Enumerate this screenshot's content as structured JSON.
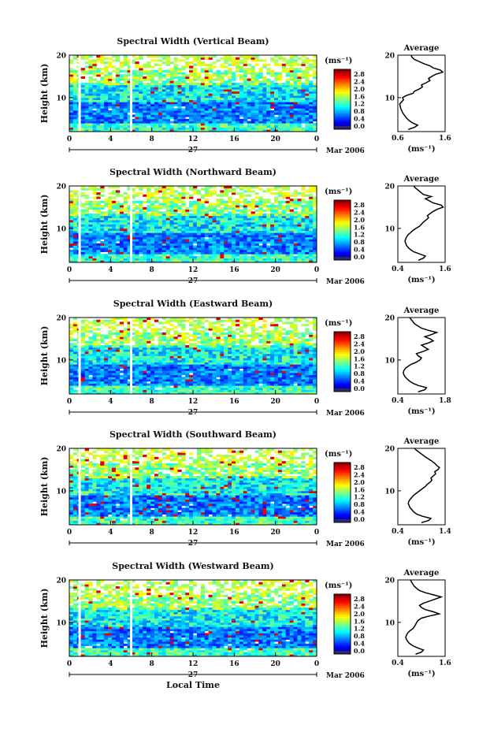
{
  "chart_data": [
    {
      "type": "heatmap",
      "title": "Spectral Width (Vertical Beam)",
      "ylabel": "Height (km)",
      "ylim": [
        2,
        20
      ],
      "y_ticks": [
        "10",
        "20"
      ],
      "xlim": [
        0,
        24
      ],
      "x_ticks": [
        "0",
        "4",
        "8",
        "12",
        "16",
        "20",
        "0"
      ],
      "date_label": "27",
      "month_label": "Mar 2006",
      "colorbar_unit": "(ms⁻¹)",
      "colorbar_ticks": [
        "2.8",
        "2.4",
        "2.0",
        "1.6",
        "1.2",
        "0.8",
        "0.4",
        "0.0"
      ],
      "colorbar_range": [
        0,
        3.0
      ],
      "data_gaps_hours": [
        1.0,
        6.0
      ],
      "average": {
        "title": "Average",
        "xlabel": "(ms⁻¹)",
        "x_ticks": [
          "0.6",
          "1.6"
        ],
        "xlim": [
          0.6,
          1.6
        ],
        "y_ticks": [
          "10",
          "20"
        ],
        "ylim": [
          2,
          20
        ],
        "heights_km": [
          2.5,
          3.0,
          3.5,
          4.0,
          4.5,
          5.0,
          5.5,
          6.0,
          6.5,
          7.0,
          7.5,
          8.0,
          8.5,
          9.0,
          9.5,
          10.0,
          10.5,
          11.0,
          11.5,
          12.0,
          12.5,
          13.0,
          13.5,
          14.0,
          14.5,
          15.0,
          15.5,
          16.0,
          16.5,
          17.0,
          17.5,
          18.0,
          18.5,
          19.0,
          19.5,
          20.0
        ],
        "values": [
          0.82,
          0.95,
          1.02,
          0.92,
          0.85,
          0.8,
          0.76,
          0.73,
          0.7,
          0.68,
          0.66,
          0.65,
          0.64,
          0.68,
          0.72,
          0.7,
          0.78,
          0.92,
          0.95,
          1.05,
          1.12,
          1.1,
          1.2,
          1.28,
          1.25,
          1.32,
          1.4,
          1.55,
          1.5,
          1.35,
          1.28,
          1.15,
          1.05,
          0.95,
          0.9,
          0.88
        ]
      }
    },
    {
      "type": "heatmap",
      "title": "Spectral Width (Northward Beam)",
      "ylabel": "Height (km)",
      "ylim": [
        2,
        20
      ],
      "y_ticks": [
        "10",
        "20"
      ],
      "xlim": [
        0,
        24
      ],
      "x_ticks": [
        "0",
        "4",
        "8",
        "12",
        "16",
        "20",
        "0"
      ],
      "date_label": "27",
      "month_label": "Mar 2006",
      "colorbar_unit": "(ms⁻¹)",
      "colorbar_ticks": [
        "2.8",
        "2.4",
        "2.0",
        "1.6",
        "1.2",
        "0.8",
        "0.4",
        "0.0"
      ],
      "colorbar_range": [
        0,
        3.0
      ],
      "data_gaps_hours": [
        1.0,
        6.0
      ],
      "average": {
        "title": "Average",
        "xlabel": "(ms⁻¹)",
        "x_ticks": [
          "0.4",
          "1.6"
        ],
        "xlim": [
          0.4,
          1.6
        ],
        "y_ticks": [
          "10",
          "20"
        ],
        "ylim": [
          2,
          20
        ],
        "heights_km": [
          2.5,
          3.0,
          3.5,
          4.0,
          4.5,
          5.0,
          5.5,
          6.0,
          6.5,
          7.0,
          7.5,
          8.0,
          8.5,
          9.0,
          9.5,
          10.0,
          10.5,
          11.0,
          11.5,
          12.0,
          12.5,
          13.0,
          13.5,
          14.0,
          14.5,
          15.0,
          15.5,
          16.0,
          16.5,
          17.0,
          17.5,
          18.0,
          18.5,
          19.0,
          19.5,
          20.0
        ],
        "values": [
          0.92,
          1.05,
          1.1,
          0.95,
          0.8,
          0.72,
          0.66,
          0.62,
          0.6,
          0.58,
          0.6,
          0.62,
          0.66,
          0.72,
          0.78,
          0.86,
          0.95,
          1.0,
          1.05,
          1.12,
          1.18,
          1.15,
          1.22,
          1.3,
          1.4,
          1.55,
          1.5,
          1.3,
          1.2,
          1.1,
          1.25,
          1.05,
          0.98,
          0.92,
          0.85,
          0.8
        ]
      }
    },
    {
      "type": "heatmap",
      "title": "Spectral Width (Eastward Beam)",
      "ylabel": "Height (km)",
      "ylim": [
        2,
        20
      ],
      "y_ticks": [
        "10",
        "20"
      ],
      "xlim": [
        0,
        24
      ],
      "x_ticks": [
        "0",
        "4",
        "8",
        "12",
        "16",
        "20",
        "0"
      ],
      "date_label": "27",
      "month_label": "Mar 2006",
      "colorbar_unit": "(ms⁻¹)",
      "colorbar_ticks": [
        "2.8",
        "2.4",
        "2.0",
        "1.6",
        "1.2",
        "0.8",
        "0.4",
        "0.0"
      ],
      "colorbar_range": [
        0,
        3.0
      ],
      "data_gaps_hours": [
        1.0,
        6.0
      ],
      "average": {
        "title": "Average",
        "xlabel": "(ms⁻¹)",
        "x_ticks": [
          "0.4",
          "1.8"
        ],
        "xlim": [
          0.4,
          1.8
        ],
        "y_ticks": [
          "10",
          "20"
        ],
        "ylim": [
          2,
          20
        ],
        "heights_km": [
          2.5,
          3.0,
          3.5,
          4.0,
          4.5,
          5.0,
          5.5,
          6.0,
          6.5,
          7.0,
          7.5,
          8.0,
          8.5,
          9.0,
          9.5,
          10.0,
          10.5,
          11.0,
          11.5,
          12.0,
          12.5,
          13.0,
          13.5,
          14.0,
          14.5,
          15.0,
          15.5,
          16.0,
          16.5,
          17.0,
          17.5,
          18.0,
          18.5,
          19.0,
          19.5,
          20.0
        ],
        "values": [
          1.0,
          1.2,
          1.25,
          1.0,
          0.85,
          0.75,
          0.68,
          0.62,
          0.58,
          0.56,
          0.58,
          0.62,
          0.7,
          0.8,
          0.95,
          1.05,
          1.1,
          1.0,
          0.95,
          1.15,
          1.3,
          1.2,
          1.1,
          1.3,
          1.45,
          1.35,
          1.2,
          1.4,
          1.55,
          1.3,
          1.1,
          1.0,
          0.9,
          0.85,
          0.8,
          0.75
        ]
      }
    },
    {
      "type": "heatmap",
      "title": "Spectral Width (Southward Beam)",
      "ylabel": "Height (km)",
      "ylim": [
        2,
        20
      ],
      "y_ticks": [
        "10",
        "20"
      ],
      "xlim": [
        0,
        24
      ],
      "x_ticks": [
        "0",
        "4",
        "8",
        "12",
        "16",
        "20",
        "0"
      ],
      "date_label": "27",
      "month_label": "Mar 2006",
      "colorbar_unit": "(ms⁻¹)",
      "colorbar_ticks": [
        "2.8",
        "2.4",
        "2.0",
        "1.6",
        "1.2",
        "0.8",
        "0.4",
        "0.0"
      ],
      "colorbar_range": [
        0,
        3.0
      ],
      "data_gaps_hours": [
        1.0,
        6.0
      ],
      "average": {
        "title": "Average",
        "xlabel": "(ms⁻¹)",
        "x_ticks": [
          "0.4",
          "1.4"
        ],
        "xlim": [
          0.4,
          1.4
        ],
        "y_ticks": [
          "10",
          "20"
        ],
        "ylim": [
          2,
          20
        ],
        "heights_km": [
          2.5,
          3.0,
          3.5,
          4.0,
          4.5,
          5.0,
          5.5,
          6.0,
          6.5,
          7.0,
          7.5,
          8.0,
          8.5,
          9.0,
          9.5,
          10.0,
          10.5,
          11.0,
          11.5,
          12.0,
          12.5,
          13.0,
          13.5,
          14.0,
          14.5,
          15.0,
          15.5,
          16.0,
          16.5,
          17.0,
          17.5,
          18.0,
          18.5,
          19.0,
          19.5,
          20.0
        ],
        "values": [
          0.9,
          1.05,
          1.1,
          0.92,
          0.8,
          0.74,
          0.7,
          0.66,
          0.64,
          0.62,
          0.63,
          0.66,
          0.7,
          0.74,
          0.8,
          0.86,
          0.92,
          0.98,
          1.02,
          1.08,
          1.12,
          1.1,
          1.15,
          1.2,
          1.18,
          1.25,
          1.28,
          1.22,
          1.18,
          1.12,
          1.05,
          0.98,
          0.92,
          0.86,
          0.8,
          0.75
        ]
      }
    },
    {
      "type": "heatmap",
      "title": "Spectral Width (Westward Beam)",
      "ylabel": "Height (km)",
      "ylim": [
        2,
        20
      ],
      "y_ticks": [
        "10",
        "20"
      ],
      "xlim": [
        0,
        24
      ],
      "x_ticks": [
        "0",
        "4",
        "8",
        "12",
        "16",
        "20",
        "0"
      ],
      "date_label": "27",
      "month_label": "Mar 2006",
      "xlabel": "Local Time",
      "colorbar_unit": "(ms⁻¹)",
      "colorbar_ticks": [
        "2.8",
        "2.4",
        "2.0",
        "1.6",
        "1.2",
        "0.8",
        "0.4",
        "0.0"
      ],
      "colorbar_range": [
        0,
        3.0
      ],
      "data_gaps_hours": [
        1.0,
        6.0
      ],
      "average": {
        "title": "Average",
        "xlabel": "(ms⁻¹)",
        "x_ticks": [
          "0.4",
          "1.6"
        ],
        "xlim": [
          0.4,
          1.6
        ],
        "y_ticks": [
          "10",
          "20"
        ],
        "ylim": [
          2,
          20
        ],
        "heights_km": [
          2.5,
          3.0,
          3.5,
          4.0,
          4.5,
          5.0,
          5.5,
          6.0,
          6.5,
          7.0,
          7.5,
          8.0,
          8.5,
          9.0,
          9.5,
          10.0,
          10.5,
          11.0,
          11.5,
          12.0,
          12.5,
          13.0,
          13.5,
          14.0,
          14.5,
          15.0,
          15.5,
          16.0,
          16.5,
          17.0,
          17.5,
          18.0,
          18.5,
          19.0,
          19.5,
          20.0
        ],
        "values": [
          0.85,
          1.0,
          1.05,
          0.9,
          0.78,
          0.7,
          0.65,
          0.62,
          0.6,
          0.62,
          0.65,
          0.7,
          0.78,
          0.82,
          0.85,
          0.88,
          0.92,
          1.0,
          1.2,
          1.45,
          1.3,
          1.1,
          1.0,
          0.95,
          1.05,
          1.2,
          1.35,
          1.5,
          1.3,
          1.1,
          0.95,
          0.88,
          0.82,
          0.78,
          0.75,
          0.72
        ]
      }
    }
  ]
}
